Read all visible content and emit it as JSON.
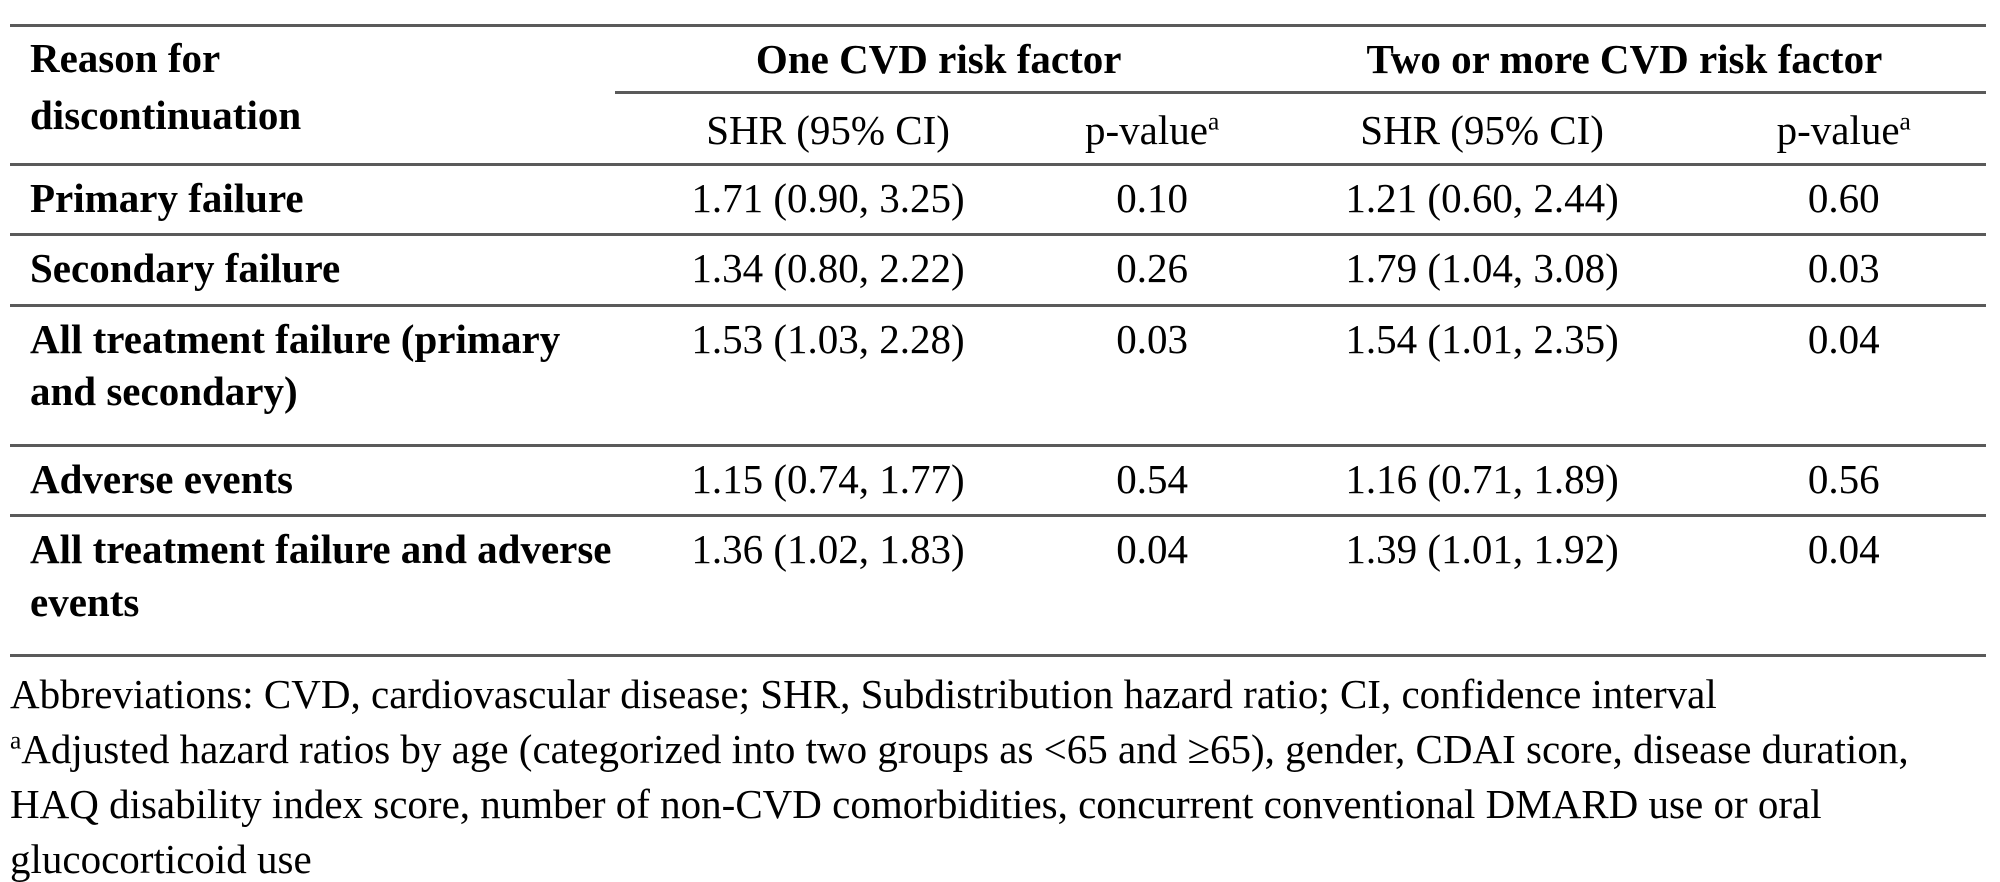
{
  "table": {
    "header": {
      "reason": "Reason for discontinuation",
      "group1": "One CVD risk factor",
      "group2": "Two or more CVD risk factor",
      "shr": "SHR (95% CI)",
      "pvalue": "p-value",
      "pvalue_sup": "a"
    },
    "rows": [
      {
        "reason": "Primary failure",
        "shr1": "1.71 (0.90, 3.25)",
        "p1": "0.10",
        "shr2": "1.21 (0.60, 2.44)",
        "p2": "0.60"
      },
      {
        "reason": "Secondary failure",
        "shr1": "1.34 (0.80, 2.22)",
        "p1": "0.26",
        "shr2": "1.79 (1.04, 3.08)",
        "p2": "0.03"
      },
      {
        "reason": "All treatment failure (primary and secondary)",
        "shr1": "1.53 (1.03, 2.28)",
        "p1": "0.03",
        "shr2": "1.54 (1.01, 2.35)",
        "p2": "0.04"
      },
      {
        "reason": "Adverse events",
        "shr1": "1.15 (0.74, 1.77)",
        "p1": "0.54",
        "shr2": "1.16 (0.71, 1.89)",
        "p2": "0.56"
      },
      {
        "reason": "All treatment failure and adverse events",
        "shr1": "1.36 (1.02, 1.83)",
        "p1": "0.04",
        "shr2": "1.39 (1.01, 1.92)",
        "p2": "0.04"
      }
    ],
    "footnotes": {
      "abbreviations": "Abbreviations: CVD, cardiovascular disease; SHR, Subdistribution hazard ratio; CI, confidence interval",
      "marker": "a",
      "adjustment": "Adjusted hazard ratios by age (categorized into two groups as <65 and ≥65), gender, CDAI score, disease duration, HAQ disability index score, number of non-CVD comorbidities, concurrent conventional DMARD use or oral glucocorticoid use"
    }
  },
  "colors": {
    "rule": "#5a5a5a",
    "text": "#000000",
    "background": "#ffffff"
  }
}
